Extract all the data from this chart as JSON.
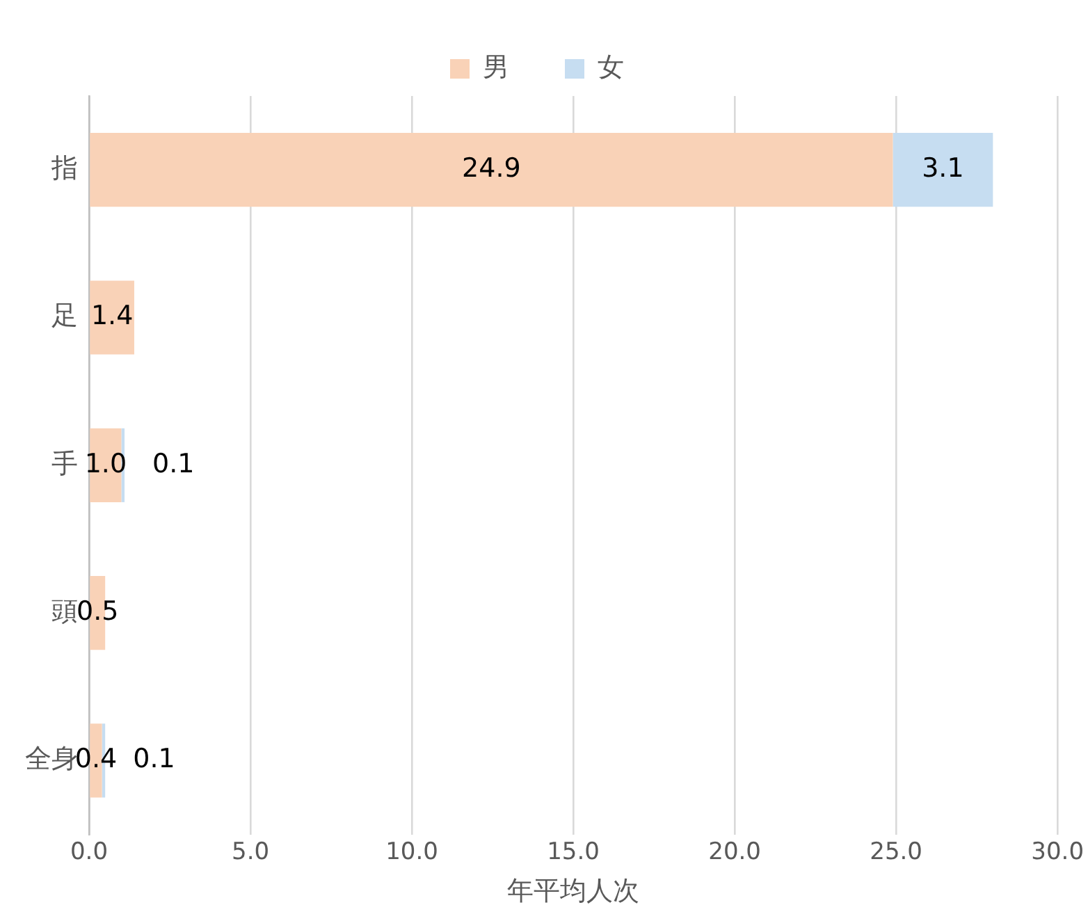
{
  "chart_data": {
    "type": "bar",
    "orientation": "horizontal",
    "stacked": true,
    "xlabel": "年平均人次",
    "categories": [
      "指",
      "足",
      "手",
      "頭",
      "全身"
    ],
    "series": [
      {
        "name": "男",
        "color": "#f9d2b7",
        "values": [
          24.9,
          1.4,
          1.0,
          0.5,
          0.4
        ],
        "value_labels": [
          "24.9",
          "1.4",
          "1.0",
          "0.5",
          "0.4"
        ]
      },
      {
        "name": "女",
        "color": "#c6ddf1",
        "values": [
          3.1,
          null,
          0.1,
          null,
          0.1
        ],
        "value_labels": [
          "3.1",
          null,
          "0.1",
          null,
          "0.1"
        ]
      }
    ],
    "xlim": [
      0,
      30
    ],
    "xticks": [
      {
        "value": 0,
        "label": "0.0"
      },
      {
        "value": 5,
        "label": "5.0"
      },
      {
        "value": 10,
        "label": "10.0"
      },
      {
        "value": 15,
        "label": "15.0"
      },
      {
        "value": 20,
        "label": "20.0"
      },
      {
        "value": 25,
        "label": "25.0"
      },
      {
        "value": 30,
        "label": "30.0"
      }
    ],
    "grid": "x",
    "legend": "top"
  }
}
